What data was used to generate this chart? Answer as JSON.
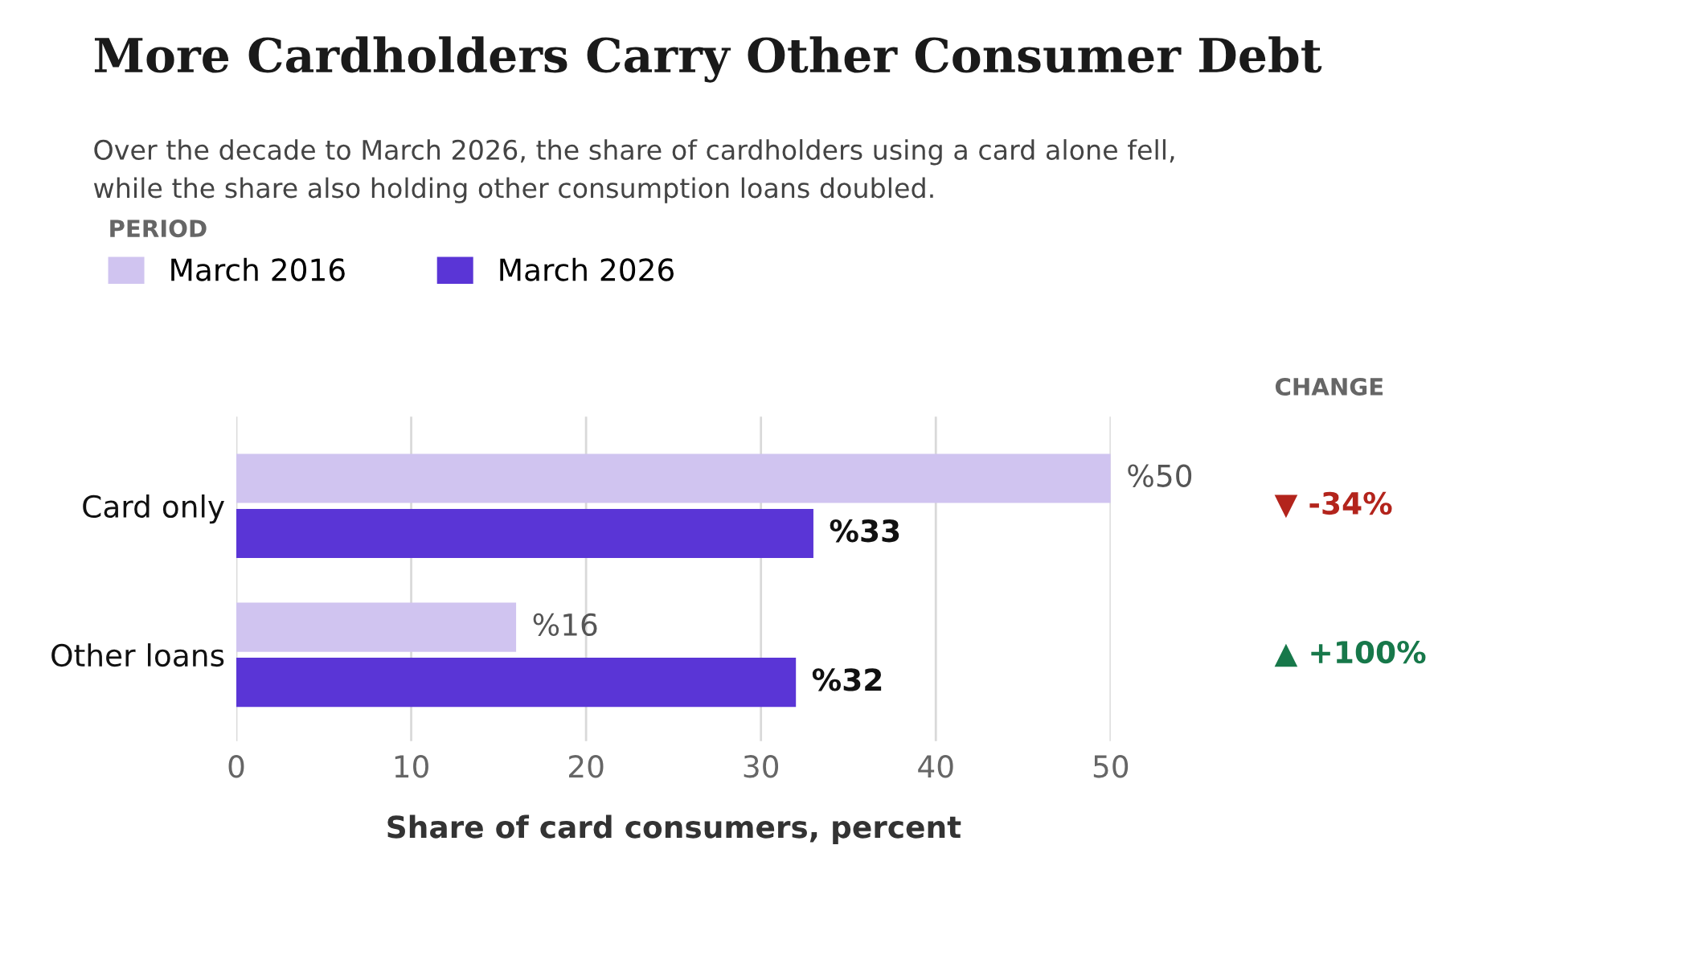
{
  "chart_data": {
    "type": "bar",
    "orientation": "horizontal",
    "title": "More Cardholders Carry Other Consumer Debt",
    "subtitle": "Over the decade to March 2026, the share of cardholders using a card alone fell,\nwhile the share also holding other consumption loans doubled.",
    "legend_title": "PERIOD",
    "legend": "top left",
    "xlabel": "Share of card consumers, percent",
    "categories": [
      "Card only",
      "Other loans"
    ],
    "series": [
      {
        "name": "March 2016",
        "color": "#d0c4f0",
        "values": [
          50,
          16
        ],
        "value_labels": [
          "%50",
          "%16"
        ]
      },
      {
        "name": "March 2026",
        "color": "#5a35d6",
        "values": [
          33,
          32
        ],
        "value_labels": [
          "%33",
          "%32"
        ]
      }
    ],
    "xlim": [
      0,
      50
    ],
    "xticks": [
      0,
      10,
      20,
      30,
      40,
      50
    ],
    "grid": "x",
    "annotations": [
      "CHANGE",
      "▼ -34%",
      "▲ +100%"
    ]
  }
}
